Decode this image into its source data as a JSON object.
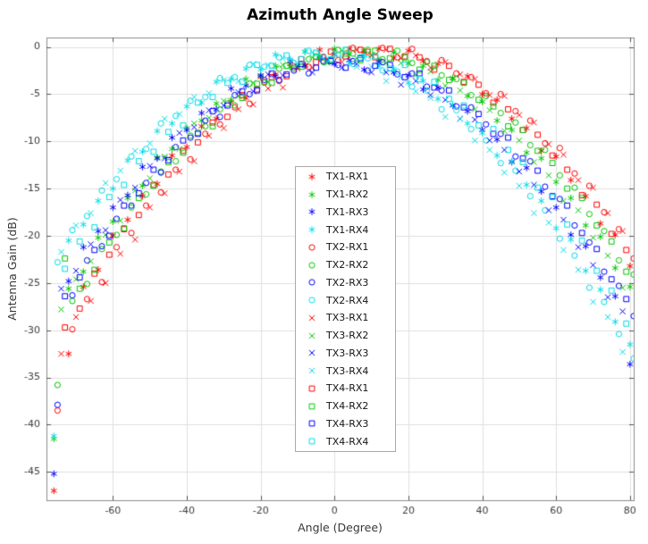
{
  "chart_data": {
    "type": "scatter",
    "title": "Azimuth Angle Sweep",
    "xlabel": "Angle (Degree)",
    "ylabel": "Antenna Gain (dB)",
    "xlim": [
      -78,
      81
    ],
    "ylim": [
      -48,
      1
    ],
    "xticks": [
      -60,
      -40,
      -20,
      0,
      20,
      40,
      60,
      80
    ],
    "yticks": [
      0,
      -5,
      -10,
      -15,
      -20,
      -25,
      -30,
      -35,
      -40,
      -45
    ],
    "grid": true,
    "legend_position": "center",
    "style": {
      "grid_color": "#e0e0e0",
      "box_color": "#8c8c8c",
      "tick_color": "#555555",
      "tick_label_color": "#3c3c3c",
      "background": "#ffffff",
      "rx1_color": "#ff0000",
      "rx2_color": "#00c800",
      "rx3_color": "#0000ff",
      "rx4_color": "#00dce8"
    },
    "x_step": 4,
    "series": [
      {
        "name": "TX1-RX1",
        "marker": "asterisk",
        "color": "#ff0000",
        "x_start": -76,
        "y": [
          -47.0,
          -32.5,
          -25.4,
          -23.6,
          -20.0,
          -18.3,
          -15.8,
          -14.5,
          -11.5,
          -10.6,
          -8.4,
          -7.6,
          -5.8,
          -5.4,
          -3.2,
          -2.9,
          -1.8,
          -1.9,
          -0.3,
          -0.8,
          -0.2,
          -0.6,
          -0.2,
          -1.2,
          -0.4,
          -1.5,
          -1.8,
          -3.3,
          -3.1,
          -5.0,
          -5.6,
          -7.6,
          -8.6,
          -11.0,
          -11.6,
          -14.1,
          -15.8,
          -18.7,
          -19.9,
          -23.2
        ]
      },
      {
        "name": "TX1-RX2",
        "marker": "asterisk",
        "color": "#00c800",
        "x_start": -76,
        "y": [
          -41.5,
          -25.6,
          -23.8,
          -20.2,
          -18.5,
          -16.0,
          -14.7,
          -11.7,
          -10.8,
          -8.6,
          -7.8,
          -6.0,
          -5.6,
          -3.4,
          -3.1,
          -2.0,
          -2.1,
          -0.5,
          -1.0,
          -0.2,
          -0.8,
          -0.4,
          -1.4,
          -0.6,
          -1.7,
          -2.0,
          -3.5,
          -3.3,
          -5.2,
          -5.8,
          -7.8,
          -8.8,
          -11.2,
          -11.8,
          -14.3,
          -16.0,
          -18.9,
          -20.1,
          -23.4,
          -25.4
        ]
      },
      {
        "name": "TX1-RX3",
        "marker": "asterisk",
        "color": "#0000ff",
        "x_start": -76,
        "y": [
          -45.2,
          -24.8,
          -21.2,
          -19.5,
          -17.0,
          -15.7,
          -12.7,
          -11.8,
          -9.6,
          -8.8,
          -7.0,
          -6.6,
          -4.4,
          -4.1,
          -3.0,
          -3.1,
          -1.5,
          -2.0,
          -1.2,
          -1.8,
          -1.4,
          -2.4,
          -1.6,
          -2.7,
          -3.0,
          -4.5,
          -4.3,
          -6.2,
          -6.8,
          -8.8,
          -9.8,
          -12.2,
          -12.8,
          -15.3,
          -17.0,
          -19.9,
          -21.1,
          -24.4,
          -26.4,
          -33.6
        ]
      },
      {
        "name": "TX1-RX4",
        "marker": "asterisk",
        "color": "#00dce8",
        "x_start": -76,
        "y": [
          -41.2,
          -20.5,
          -18.8,
          -16.3,
          -15.0,
          -12.0,
          -11.1,
          -8.9,
          -8.1,
          -6.3,
          -5.9,
          -3.7,
          -3.4,
          -2.3,
          -2.4,
          -0.8,
          -1.3,
          -0.5,
          -1.1,
          -0.7,
          -1.7,
          -0.9,
          -2.0,
          -2.3,
          -3.8,
          -3.6,
          -5.5,
          -6.1,
          -8.1,
          -9.1,
          -11.5,
          -12.1,
          -14.6,
          -16.3,
          -19.2,
          -20.4,
          -23.7,
          -25.7,
          -29.1,
          -31.5
        ]
      },
      {
        "name": "TX2-RX1",
        "marker": "circle",
        "color": "#ff0000",
        "x_start": -75,
        "y": [
          -38.5,
          -29.9,
          -26.7,
          -24.9,
          -21.2,
          -19.7,
          -16.8,
          -15.4,
          -13.0,
          -11.9,
          -9.2,
          -8.2,
          -6.4,
          -6.0,
          -3.7,
          -3.6,
          -2.1,
          -2.1,
          -1.1,
          -1.4,
          -0.1,
          -0.5,
          -0.1,
          -1.1,
          -0.2,
          -1.5,
          -1.4,
          -2.8,
          -3.2,
          -4.9,
          -5.0,
          -6.8,
          -7.8,
          -10.2,
          -10.7,
          -13.4,
          -14.7,
          -17.5,
          -19.3,
          -22.4
        ]
      },
      {
        "name": "TX2-RX2",
        "marker": "circle",
        "color": "#00c800",
        "x_start": -75,
        "y": [
          -35.8,
          -26.9,
          -25.1,
          -21.4,
          -19.9,
          -17.0,
          -15.6,
          -13.2,
          -12.1,
          -9.4,
          -8.4,
          -6.6,
          -6.2,
          -3.9,
          -3.8,
          -2.3,
          -2.3,
          -1.3,
          -1.6,
          -0.3,
          -0.7,
          -0.3,
          -1.3,
          -0.4,
          -1.7,
          -1.6,
          -3.0,
          -3.4,
          -5.1,
          -5.2,
          -7.0,
          -8.0,
          -10.4,
          -10.9,
          -13.6,
          -14.9,
          -17.7,
          -19.5,
          -22.6,
          -24.1
        ]
      },
      {
        "name": "TX2-RX3",
        "marker": "circle",
        "color": "#0000ff",
        "x_start": -75,
        "y": [
          -37.9,
          -26.3,
          -22.6,
          -21.1,
          -18.2,
          -16.8,
          -14.4,
          -13.3,
          -10.6,
          -9.6,
          -7.8,
          -7.4,
          -5.1,
          -5.0,
          -3.5,
          -3.5,
          -2.5,
          -2.8,
          -1.5,
          -1.9,
          -1.5,
          -2.5,
          -1.6,
          -2.9,
          -2.8,
          -4.2,
          -4.6,
          -6.3,
          -6.4,
          -8.2,
          -9.2,
          -11.6,
          -12.1,
          -14.8,
          -16.1,
          -18.9,
          -20.7,
          -23.8,
          -25.3,
          -28.5
        ]
      },
      {
        "name": "TX2-RX4",
        "marker": "circle",
        "color": "#00dce8",
        "x_start": -75,
        "y": [
          -22.8,
          -19.4,
          -17.9,
          -15.2,
          -14.0,
          -11.6,
          -10.8,
          -8.1,
          -7.3,
          -5.7,
          -5.3,
          -3.3,
          -3.2,
          -1.9,
          -2.1,
          -1.1,
          -1.7,
          -0.4,
          -1.0,
          -0.8,
          -1.8,
          -1.2,
          -2.5,
          -2.6,
          -4.2,
          -4.6,
          -6.6,
          -6.7,
          -8.7,
          -9.9,
          -12.3,
          -13.1,
          -15.8,
          -17.3,
          -20.3,
          -22.1,
          -25.5,
          -27.0,
          -30.4,
          -33.0
        ]
      },
      {
        "name": "TX3-RX1",
        "marker": "x",
        "color": "#ff0000",
        "x_start": -74,
        "y": [
          -32.5,
          -28.6,
          -26.9,
          -25.0,
          -21.9,
          -20.4,
          -17.0,
          -15.5,
          -13.2,
          -12.1,
          -9.4,
          -8.6,
          -6.6,
          -6.1,
          -4.4,
          -4.3,
          -2.3,
          -2.2,
          -1.3,
          -1.6,
          -0.3,
          -0.9,
          -0.3,
          -1.2,
          -0.9,
          -2.2,
          -1.6,
          -2.9,
          -3.4,
          -5.1,
          -5.2,
          -7.2,
          -8.0,
          -10.3,
          -11.4,
          -14.1,
          -14.9,
          -17.6,
          -19.5,
          -22.6
        ]
      },
      {
        "name": "TX3-RX2",
        "marker": "x",
        "color": "#00c800",
        "x_start": -74,
        "y": [
          -27.8,
          -24.6,
          -22.7,
          -19.9,
          -18.4,
          -15.2,
          -13.9,
          -11.6,
          -10.8,
          -8.1,
          -7.5,
          -5.7,
          -5.2,
          -3.8,
          -3.7,
          -1.9,
          -2.0,
          -1.1,
          -1.7,
          -0.4,
          -1.2,
          -0.8,
          -1.7,
          -1.7,
          -3.0,
          -2.6,
          -4.1,
          -4.6,
          -6.6,
          -6.7,
          -8.9,
          -9.9,
          -12.2,
          -13.6,
          -16.3,
          -17.3,
          -20.2,
          -22.1,
          -25.5,
          -27.0
        ]
      },
      {
        "name": "TX3-RX3",
        "marker": "x",
        "color": "#0000ff",
        "x_start": -74,
        "y": [
          -25.6,
          -23.7,
          -20.9,
          -19.4,
          -16.2,
          -14.9,
          -12.6,
          -11.8,
          -9.1,
          -8.5,
          -6.7,
          -6.2,
          -4.8,
          -4.7,
          -2.9,
          -3.0,
          -2.1,
          -2.7,
          -1.4,
          -2.2,
          -1.8,
          -2.7,
          -2.7,
          -4.0,
          -3.6,
          -5.1,
          -5.6,
          -7.6,
          -7.7,
          -9.9,
          -10.9,
          -13.2,
          -14.6,
          -17.3,
          -18.3,
          -21.2,
          -23.1,
          -26.5,
          -28.0,
          -31.6
        ]
      },
      {
        "name": "TX3-RX4",
        "marker": "x",
        "color": "#00dce8",
        "x_start": -74,
        "y": [
          -21.7,
          -18.9,
          -17.6,
          -14.4,
          -13.1,
          -11.0,
          -10.2,
          -7.6,
          -7.1,
          -5.3,
          -4.9,
          -3.5,
          -3.6,
          -1.8,
          -1.9,
          -1.2,
          -1.8,
          -0.6,
          -1.5,
          -1.1,
          -2.1,
          -2.1,
          -3.6,
          -3.2,
          -4.7,
          -5.4,
          -7.4,
          -7.6,
          -9.9,
          -10.9,
          -13.3,
          -14.7,
          -17.6,
          -18.6,
          -21.5,
          -23.6,
          -27.0,
          -28.6,
          -32.3,
          -32.9
        ]
      },
      {
        "name": "TX4-RX1",
        "marker": "square",
        "color": "#ff0000",
        "x_start": -73,
        "y": [
          -29.7,
          -27.7,
          -24.0,
          -22.0,
          -19.3,
          -17.8,
          -14.6,
          -13.5,
          -11.0,
          -10.1,
          -8.0,
          -7.4,
          -5.1,
          -4.5,
          -3.2,
          -3.1,
          -1.3,
          -1.6,
          -0.5,
          -1.0,
          -0.3,
          -1.1,
          -0.2,
          -1.0,
          -1.1,
          -2.4,
          -2.0,
          -3.7,
          -4.0,
          -5.9,
          -6.6,
          -8.8,
          -9.3,
          -11.5,
          -13.0,
          -15.7,
          -16.7,
          -19.8,
          -21.5,
          -24.8
        ]
      },
      {
        "name": "TX4-RX2",
        "marker": "square",
        "color": "#00c800",
        "x_start": -73,
        "y": [
          -22.4,
          -25.6,
          -23.6,
          -20.7,
          -19.2,
          -16.0,
          -14.7,
          -12.2,
          -11.2,
          -9.1,
          -8.4,
          -6.0,
          -5.4,
          -3.9,
          -3.8,
          -2.0,
          -2.1,
          -1.0,
          -1.4,
          -0.7,
          -1.4,
          -0.4,
          -1.2,
          -1.1,
          -2.4,
          -2.0,
          -3.5,
          -3.8,
          -5.6,
          -6.3,
          -8.4,
          -8.8,
          -11.0,
          -12.3,
          -15.0,
          -16.0,
          -18.9,
          -20.6,
          -23.8,
          -25.9
        ]
      },
      {
        "name": "TX4-RX3",
        "marker": "square",
        "color": "#0000ff",
        "x_start": -73,
        "y": [
          -26.4,
          -24.4,
          -21.5,
          -20.0,
          -16.8,
          -15.5,
          -13.0,
          -12.0,
          -9.9,
          -9.2,
          -6.8,
          -6.2,
          -4.7,
          -4.6,
          -2.8,
          -2.9,
          -1.8,
          -2.2,
          -1.5,
          -2.2,
          -1.2,
          -2.0,
          -1.9,
          -3.2,
          -2.8,
          -4.3,
          -4.6,
          -6.4,
          -7.1,
          -9.2,
          -9.6,
          -11.8,
          -13.1,
          -15.8,
          -16.8,
          -19.7,
          -21.4,
          -24.6,
          -26.7,
          -30.2
        ]
      },
      {
        "name": "TX4-RX4",
        "marker": "square",
        "color": "#00dce8",
        "x_start": -73,
        "y": [
          -23.5,
          -20.6,
          -19.1,
          -15.9,
          -14.6,
          -12.1,
          -11.1,
          -9.0,
          -8.3,
          -5.9,
          -5.3,
          -3.8,
          -3.7,
          -1.9,
          -2.0,
          -0.9,
          -1.3,
          -0.6,
          -1.3,
          -0.3,
          -1.1,
          -1.0,
          -2.3,
          -1.9,
          -3.4,
          -3.7,
          -5.5,
          -6.2,
          -8.3,
          -8.7,
          -10.9,
          -12.2,
          -14.9,
          -15.9,
          -18.8,
          -20.5,
          -23.7,
          -25.8,
          -29.3,
          -31.1
        ]
      }
    ]
  }
}
